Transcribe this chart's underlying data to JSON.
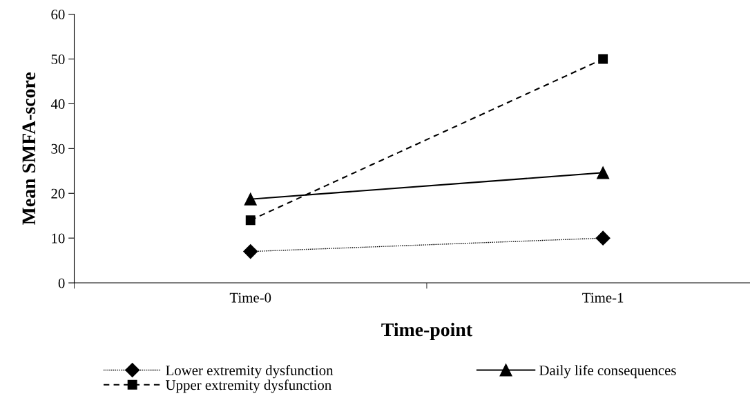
{
  "chart_data": {
    "type": "line",
    "xlabel": "Time-point",
    "ylabel": "Mean SMFA-score",
    "categories": [
      "Time-0",
      "Time-1"
    ],
    "series": [
      {
        "name": "Lower extremity dysfunction",
        "color": "#000000",
        "values": [
          7,
          10
        ],
        "marker": "diamond",
        "line_style": "dotted"
      },
      {
        "name": "Upper extremity dysfunction",
        "color": "#000000",
        "values": [
          14,
          50
        ],
        "marker": "square",
        "line_style": "dashed"
      },
      {
        "name": "Daily life consequences",
        "color": "#000000",
        "values": [
          18.7,
          24.6
        ],
        "marker": "triangle",
        "line_style": "solid"
      }
    ],
    "ylim": [
      0,
      60
    ],
    "yticks": [
      0,
      10,
      20,
      30,
      40,
      50,
      60
    ],
    "grid": false,
    "legend": "bottom"
  }
}
